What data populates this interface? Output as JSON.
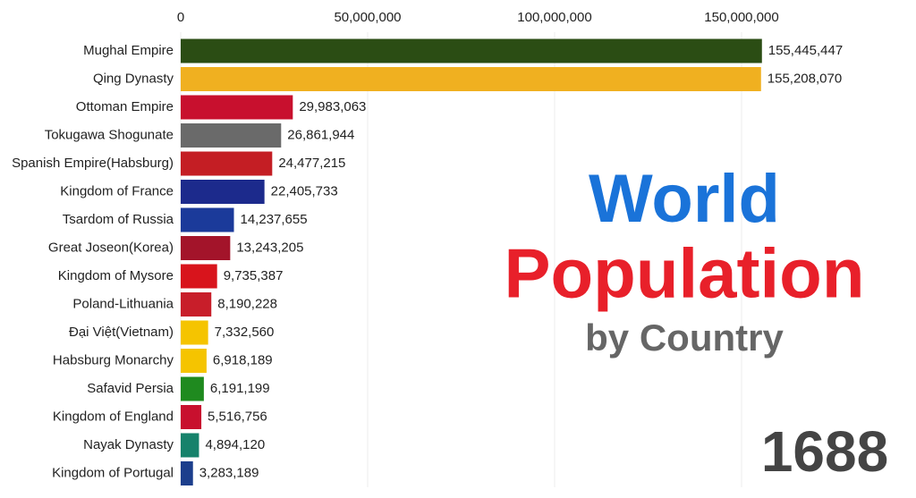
{
  "chart_data": {
    "type": "barh",
    "title_lines": [
      "World",
      "Population",
      "by Country"
    ],
    "year": "1688",
    "categories": [
      "Mughal Empire",
      "Qing Dynasty",
      "Ottoman Empire",
      "Tokugawa Shogunate",
      "Spanish Empire(Habsburg)",
      "Kingdom of France",
      "Tsardom of Russia",
      "Great Joseon(Korea)",
      "Kingdom of Mysore",
      "Poland-Lithuania",
      "Đại Việt(Vietnam)",
      "Habsburg Monarchy",
      "Safavid Persia",
      "Kingdom of England",
      "Nayak Dynasty",
      "Kingdom of Portugal"
    ],
    "values": [
      155445447,
      155208070,
      29983063,
      26861944,
      24477215,
      22405733,
      14237655,
      13243205,
      9735387,
      8190228,
      7332560,
      6918189,
      6191199,
      5516756,
      4894120,
      3283189
    ],
    "value_labels": [
      "155,445,447",
      "155,208,070",
      "29,983,063",
      "26,861,944",
      "24,477,215",
      "22,405,733",
      "14,237,655",
      "13,243,205",
      "9,735,387",
      "8,190,228",
      "7,332,560",
      "6,918,189",
      "6,191,199",
      "5,516,756",
      "4,894,120",
      "3,283,189"
    ],
    "colors": [
      "#2b4d14",
      "#f0b020",
      "#c8102e",
      "#6a6a6a",
      "#c41e24",
      "#1c2a8c",
      "#1b3a9a",
      "#a3142a",
      "#d8141c",
      "#c81e2a",
      "#f5c400",
      "#f5c400",
      "#1f8a1f",
      "#c8102e",
      "#16826b",
      "#1c3e8c"
    ],
    "xlim": [
      0,
      200000000
    ],
    "xticks": [
      0,
      {
        "value": 50000000,
        "label": "50,000,000"
      },
      {
        "value": 100000000,
        "label": "100,000,000"
      },
      {
        "value": 150000000,
        "label": "150,000,000"
      }
    ],
    "grid": true
  }
}
